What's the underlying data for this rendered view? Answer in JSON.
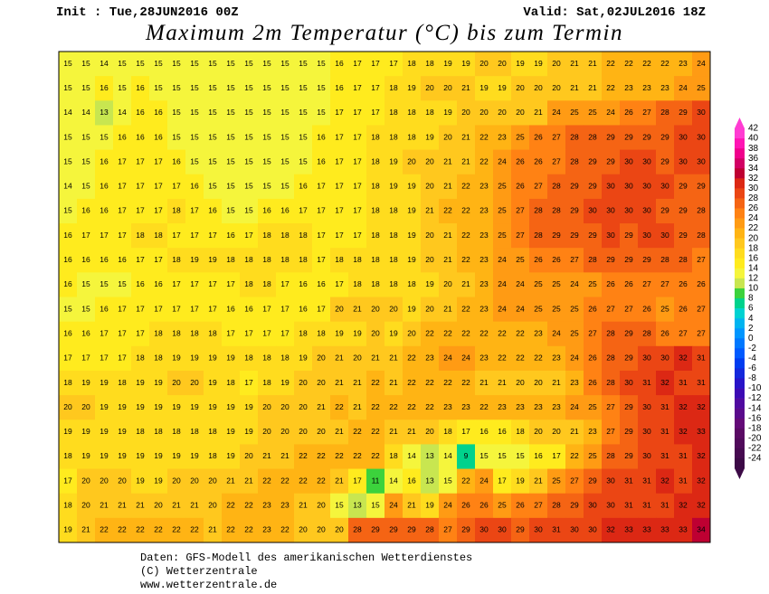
{
  "header": {
    "init": "Init : Tue,28JUN2016 00Z",
    "valid": "Valid: Sat,02JUL2016 18Z",
    "title": "Maximum 2m Temperatur (°C) bis zum Termin"
  },
  "map": {
    "rows": [
      [
        15,
        15,
        14,
        15,
        15,
        15,
        15,
        15,
        15,
        15,
        15,
        15,
        15,
        15,
        15,
        16,
        17,
        17,
        17,
        18,
        18,
        19,
        19,
        20,
        20,
        19,
        19,
        20,
        21,
        21,
        22,
        22,
        22,
        22,
        23,
        24
      ],
      [
        15,
        15,
        16,
        15,
        16,
        15,
        15,
        15,
        15,
        15,
        15,
        15,
        15,
        15,
        15,
        16,
        17,
        17,
        18,
        19,
        20,
        20,
        21,
        19,
        19,
        20,
        20,
        20,
        21,
        21,
        22,
        23,
        23,
        23,
        24,
        25
      ],
      [
        14,
        14,
        13,
        14,
        16,
        16,
        15,
        15,
        15,
        15,
        15,
        15,
        15,
        15,
        15,
        17,
        17,
        17,
        18,
        18,
        18,
        19,
        20,
        20,
        20,
        20,
        21,
        24,
        25,
        25,
        24,
        26,
        27,
        28,
        29,
        30
      ],
      [
        15,
        15,
        15,
        16,
        16,
        16,
        15,
        15,
        15,
        15,
        15,
        15,
        15,
        15,
        16,
        17,
        17,
        18,
        18,
        18,
        19,
        20,
        21,
        22,
        23,
        25,
        26,
        27,
        28,
        28,
        29,
        29,
        29,
        29,
        30,
        30
      ],
      [
        15,
        15,
        16,
        17,
        17,
        17,
        16,
        15,
        15,
        15,
        15,
        15,
        15,
        15,
        16,
        17,
        17,
        18,
        19,
        20,
        20,
        21,
        21,
        22,
        24,
        26,
        26,
        27,
        28,
        29,
        29,
        30,
        30,
        29,
        30,
        30
      ],
      [
        14,
        15,
        16,
        17,
        17,
        17,
        17,
        16,
        15,
        15,
        15,
        15,
        15,
        16,
        17,
        17,
        17,
        18,
        19,
        19,
        20,
        21,
        22,
        23,
        25,
        26,
        27,
        28,
        29,
        29,
        30,
        30,
        30,
        30,
        29,
        29
      ],
      [
        15,
        16,
        16,
        17,
        17,
        17,
        18,
        17,
        16,
        15,
        15,
        16,
        16,
        17,
        17,
        17,
        17,
        18,
        18,
        19,
        21,
        22,
        22,
        23,
        25,
        27,
        28,
        28,
        29,
        30,
        30,
        30,
        30,
        29,
        29,
        28
      ],
      [
        16,
        17,
        17,
        17,
        18,
        18,
        17,
        17,
        17,
        16,
        17,
        18,
        18,
        18,
        17,
        17,
        17,
        18,
        18,
        19,
        20,
        21,
        22,
        23,
        25,
        27,
        28,
        29,
        29,
        29,
        30,
        29,
        30,
        30,
        29,
        28
      ],
      [
        16,
        16,
        16,
        16,
        17,
        17,
        18,
        19,
        19,
        18,
        18,
        18,
        18,
        18,
        17,
        18,
        18,
        18,
        18,
        19,
        20,
        21,
        22,
        23,
        24,
        25,
        26,
        26,
        27,
        28,
        29,
        29,
        29,
        28,
        28,
        27
      ],
      [
        16,
        15,
        15,
        15,
        16,
        16,
        17,
        17,
        17,
        17,
        18,
        18,
        17,
        16,
        16,
        17,
        18,
        18,
        18,
        18,
        19,
        20,
        21,
        23,
        24,
        24,
        25,
        25,
        24,
        25,
        26,
        26,
        27,
        27,
        26,
        26
      ],
      [
        15,
        15,
        16,
        17,
        17,
        17,
        17,
        17,
        17,
        16,
        16,
        17,
        17,
        16,
        17,
        20,
        21,
        20,
        20,
        19,
        20,
        21,
        22,
        23,
        24,
        24,
        25,
        25,
        25,
        26,
        27,
        27,
        26,
        25,
        26,
        27
      ],
      [
        16,
        16,
        17,
        17,
        17,
        18,
        18,
        18,
        18,
        17,
        17,
        17,
        17,
        18,
        18,
        19,
        19,
        20,
        19,
        20,
        22,
        22,
        22,
        22,
        22,
        22,
        23,
        24,
        25,
        27,
        28,
        29,
        28,
        26,
        27,
        27
      ],
      [
        17,
        17,
        17,
        17,
        18,
        18,
        19,
        19,
        19,
        19,
        18,
        18,
        18,
        19,
        20,
        21,
        20,
        21,
        21,
        22,
        23,
        24,
        24,
        23,
        22,
        22,
        22,
        23,
        24,
        26,
        28,
        29,
        30,
        30,
        32,
        31
      ],
      [
        18,
        19,
        19,
        18,
        19,
        19,
        20,
        20,
        19,
        18,
        17,
        18,
        19,
        20,
        20,
        21,
        21,
        22,
        21,
        22,
        22,
        22,
        22,
        21,
        21,
        20,
        20,
        21,
        23,
        26,
        28,
        30,
        31,
        32,
        31,
        31
      ],
      [
        20,
        20,
        19,
        19,
        19,
        19,
        19,
        19,
        19,
        19,
        19,
        20,
        20,
        20,
        21,
        22,
        21,
        22,
        22,
        22,
        22,
        23,
        23,
        22,
        23,
        23,
        23,
        23,
        24,
        25,
        27,
        29,
        30,
        31,
        32,
        32
      ],
      [
        19,
        19,
        19,
        19,
        18,
        18,
        18,
        18,
        18,
        19,
        19,
        20,
        20,
        20,
        20,
        21,
        22,
        22,
        21,
        21,
        20,
        18,
        17,
        16,
        16,
        18,
        20,
        20,
        21,
        23,
        27,
        29,
        30,
        31,
        32,
        33
      ],
      [
        18,
        19,
        19,
        19,
        19,
        19,
        19,
        19,
        18,
        19,
        20,
        21,
        21,
        22,
        22,
        22,
        22,
        22,
        18,
        14,
        13,
        14,
        9,
        15,
        15,
        15,
        16,
        17,
        22,
        25,
        28,
        29,
        30,
        31,
        31,
        32
      ],
      [
        17,
        20,
        20,
        20,
        19,
        19,
        20,
        20,
        20,
        21,
        21,
        22,
        22,
        22,
        22,
        21,
        17,
        11,
        14,
        16,
        13,
        15,
        22,
        24,
        17,
        19,
        21,
        25,
        27,
        29,
        30,
        31,
        31,
        32,
        31,
        32
      ],
      [
        18,
        20,
        21,
        21,
        21,
        20,
        21,
        21,
        20,
        22,
        22,
        23,
        23,
        21,
        20,
        15,
        13,
        15,
        24,
        21,
        19,
        24,
        26,
        26,
        25,
        26,
        27,
        28,
        29,
        30,
        30,
        31,
        31,
        31,
        32,
        32
      ],
      [
        19,
        21,
        22,
        22,
        22,
        22,
        22,
        22,
        21,
        22,
        22,
        23,
        22,
        20,
        20,
        20,
        28,
        29,
        29,
        29,
        28,
        27,
        29,
        30,
        30,
        29,
        30,
        31,
        30,
        30,
        32,
        33,
        33,
        33,
        33,
        34
      ]
    ]
  },
  "colorbar": {
    "levels": [
      42,
      40,
      38,
      36,
      34,
      32,
      30,
      28,
      26,
      24,
      22,
      20,
      18,
      16,
      14,
      12,
      10,
      8,
      6,
      4,
      2,
      0,
      -2,
      -4,
      -6,
      -8,
      -10,
      -12,
      -14,
      -16,
      -18,
      -20,
      -22,
      -24
    ],
    "colors": [
      "#ff3cd2",
      "#ff14b4",
      "#f0008c",
      "#d20064",
      "#be0032",
      "#dc2814",
      "#eb4614",
      "#f56414",
      "#ff8214",
      "#ff9b14",
      "#ffb414",
      "#ffc81e",
      "#ffdc1e",
      "#ffeb1e",
      "#f5f53c",
      "#c8e650",
      "#3cd23c",
      "#00d28c",
      "#00d2d2",
      "#00b4f0",
      "#0096ff",
      "#0078ff",
      "#005aff",
      "#003cf0",
      "#1428dc",
      "#2814c8",
      "#3c0ab4",
      "#500aa0",
      "#5a0a8c",
      "#640a78",
      "#5a0a64",
      "#500a5a",
      "#460a50",
      "#3c0a46"
    ]
  },
  "footer": {
    "lines": [
      "Daten: GFS-Modell des amerikanischen Wetterdienstes",
      "(C) Wetterzentrale",
      "www.wetterzentrale.de"
    ]
  }
}
